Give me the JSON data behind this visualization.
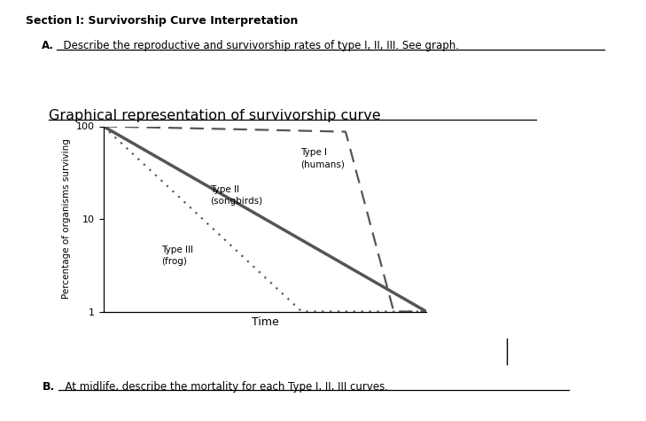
{
  "title_section": "Section I: Survivorship Curve Interpretation",
  "subtitle_a_bold": "A.",
  "subtitle_a_text": "  Describe the reproductive and survivorship rates of type I, II, III. See graph.",
  "graph_title": "Graphical representation of survivorship curve",
  "xlabel": "Time",
  "ylabel": "Percentage of organisms surviving",
  "ytick_labels": [
    "1",
    "10",
    "100"
  ],
  "ytick_vals": [
    1,
    10,
    100
  ],
  "xlim": [
    0,
    10
  ],
  "type1_label_line1": "Type I",
  "type1_label_line2": "(humans)",
  "type2_label_line1": "Type II",
  "type2_label_line2": "(songbirds)",
  "type3_label_line1": "Type III",
  "type3_label_line2": "(frog)",
  "footer_b_bold": "B.",
  "footer_b_text": "  At midlife, describe the mortality for each Type I, II, III curves.",
  "bg_color": "#ffffff",
  "curve_color": "#555555",
  "text_color": "#000000"
}
